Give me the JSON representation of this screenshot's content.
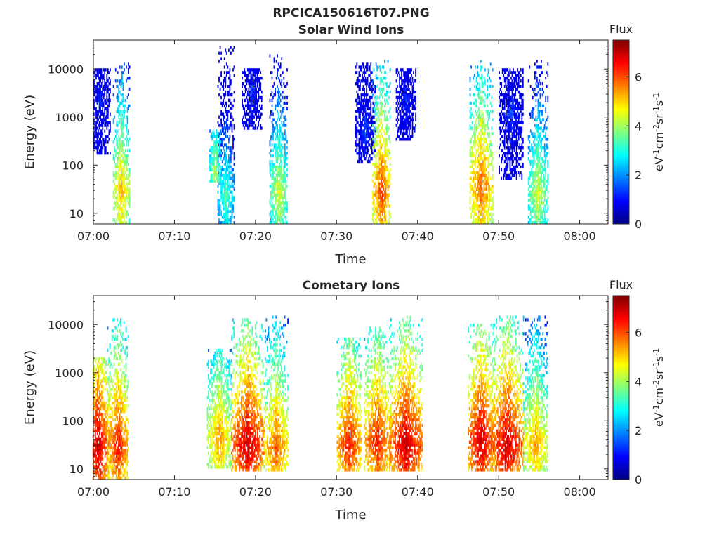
{
  "figure": {
    "filename_title": "RPCICA150616T07.PNG"
  },
  "colorbar": {
    "label_top": "Flux",
    "units_label": "eV-1cm-2sr-1s-1",
    "ticks": [
      "0",
      "2",
      "4",
      "6"
    ],
    "colormap": "jet",
    "range": [
      0,
      7.5
    ]
  },
  "chart_data": [
    {
      "type": "heatmap",
      "title": "Solar Wind Ions",
      "xlabel": "Time",
      "ylabel": "Energy (eV)",
      "x_tick_labels": [
        "07:00",
        "07:10",
        "07:20",
        "07:30",
        "07:40",
        "07:50",
        "08:00"
      ],
      "x_tick_minutes": [
        0,
        10,
        20,
        30,
        40,
        50,
        60
      ],
      "xlim_minutes": [
        0,
        63.5
      ],
      "y_scale": "log",
      "y_tick_labels": [
        "10",
        "100",
        "1000",
        "10000"
      ],
      "y_tick_values": [
        10,
        100,
        1000,
        10000
      ],
      "ylim": [
        6,
        40000
      ],
      "value_range": [
        0,
        7.5
      ],
      "features": [
        {
          "t": 3.4,
          "dt": 1.0,
          "e_lo": 6,
          "e_hi": 12000,
          "peak_e": 25,
          "peak_v": 5.3
        },
        {
          "t": 0.8,
          "dt": 1.2,
          "e_lo": 150,
          "e_hi": 10000,
          "peak_e": 2000,
          "peak_v": 1.3
        },
        {
          "t": 16.3,
          "dt": 1.0,
          "e_lo": 6,
          "e_hi": 30000,
          "peak_e": 20,
          "peak_v": 3.5
        },
        {
          "t": 15.0,
          "dt": 0.7,
          "e_lo": 40,
          "e_hi": 500,
          "peak_e": 60,
          "peak_v": 4.2
        },
        {
          "t": 19.5,
          "dt": 1.2,
          "e_lo": 500,
          "e_hi": 10000,
          "peak_e": 3000,
          "peak_v": 1.4
        },
        {
          "t": 22.8,
          "dt": 1.1,
          "e_lo": 6,
          "e_hi": 20000,
          "peak_e": 25,
          "peak_v": 4.5
        },
        {
          "t": 33.5,
          "dt": 1.2,
          "e_lo": 100,
          "e_hi": 12000,
          "peak_e": 500,
          "peak_v": 1.5
        },
        {
          "t": 35.5,
          "dt": 1.1,
          "e_lo": 6,
          "e_hi": 15000,
          "peak_e": 28,
          "peak_v": 6.2
        },
        {
          "t": 38.5,
          "dt": 1.2,
          "e_lo": 300,
          "e_hi": 10000,
          "peak_e": 2000,
          "peak_v": 1.3
        },
        {
          "t": 47.8,
          "dt": 1.4,
          "e_lo": 6,
          "e_hi": 15000,
          "peak_e": 35,
          "peak_v": 6.0
        },
        {
          "t": 51.5,
          "dt": 1.5,
          "e_lo": 50,
          "e_hi": 10000,
          "peak_e": 1000,
          "peak_v": 1.5
        },
        {
          "t": 54.8,
          "dt": 1.2,
          "e_lo": 6,
          "e_hi": 15000,
          "peak_e": 25,
          "peak_v": 4.5
        }
      ]
    },
    {
      "type": "heatmap",
      "title": "Cometary Ions",
      "xlabel": "Time",
      "ylabel": "Energy (eV)",
      "x_tick_labels": [
        "07:00",
        "07:10",
        "07:20",
        "07:30",
        "07:40",
        "07:50",
        "08:00"
      ],
      "x_tick_minutes": [
        0,
        10,
        20,
        30,
        40,
        50,
        60
      ],
      "xlim_minutes": [
        0,
        63.5
      ],
      "y_scale": "log",
      "y_tick_labels": [
        "10",
        "100",
        "1000",
        "10000"
      ],
      "y_tick_values": [
        10,
        100,
        1000,
        10000
      ],
      "ylim": [
        6,
        40000
      ],
      "value_range": [
        0,
        7.5
      ],
      "features": [
        {
          "t": 0.5,
          "dt": 1.4,
          "e_lo": 6,
          "e_hi": 2000,
          "peak_e": 30,
          "peak_v": 7.0
        },
        {
          "t": 3.0,
          "dt": 1.3,
          "e_lo": 6,
          "e_hi": 12000,
          "peak_e": 30,
          "peak_v": 6.5
        },
        {
          "t": 15.5,
          "dt": 1.5,
          "e_lo": 10,
          "e_hi": 3000,
          "peak_e": 40,
          "peak_v": 5.5
        },
        {
          "t": 19.0,
          "dt": 2.0,
          "e_lo": 8,
          "e_hi": 12000,
          "peak_e": 30,
          "peak_v": 7.0
        },
        {
          "t": 22.5,
          "dt": 1.5,
          "e_lo": 8,
          "e_hi": 15000,
          "peak_e": 25,
          "peak_v": 6.0
        },
        {
          "t": 31.5,
          "dt": 1.5,
          "e_lo": 8,
          "e_hi": 5000,
          "peak_e": 30,
          "peak_v": 6.5
        },
        {
          "t": 35.0,
          "dt": 1.6,
          "e_lo": 8,
          "e_hi": 10000,
          "peak_e": 35,
          "peak_v": 6.5
        },
        {
          "t": 38.5,
          "dt": 2.0,
          "e_lo": 8,
          "e_hi": 15000,
          "peak_e": 30,
          "peak_v": 7.0
        },
        {
          "t": 47.8,
          "dt": 1.6,
          "e_lo": 8,
          "e_hi": 10000,
          "peak_e": 35,
          "peak_v": 7.0
        },
        {
          "t": 51.0,
          "dt": 2.0,
          "e_lo": 8,
          "e_hi": 15000,
          "peak_e": 30,
          "peak_v": 7.0
        },
        {
          "t": 54.5,
          "dt": 1.5,
          "e_lo": 8,
          "e_hi": 15000,
          "peak_e": 30,
          "peak_v": 5.5
        }
      ]
    }
  ]
}
